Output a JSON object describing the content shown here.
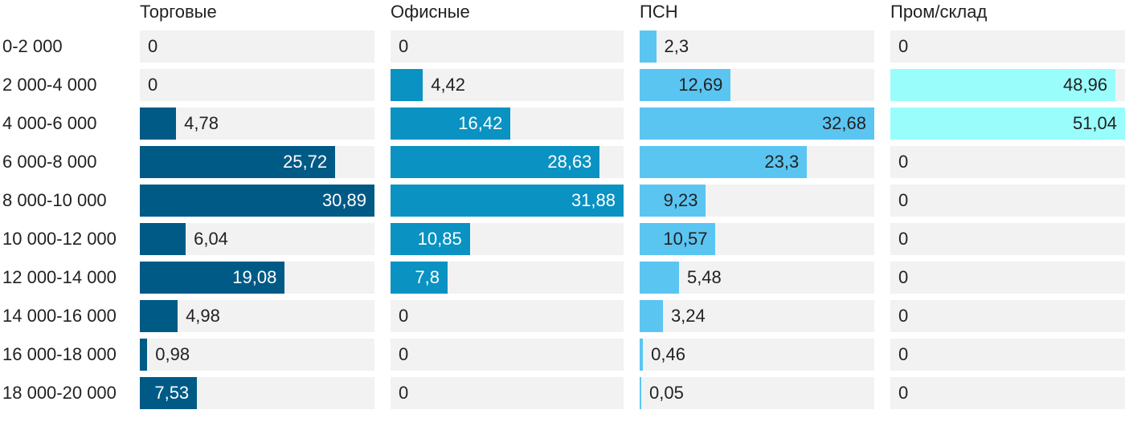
{
  "chart_data": {
    "type": "bar",
    "orientation": "horizontal",
    "layout": "small-multiples",
    "categories": [
      "0-2 000",
      "2 000-4 000",
      "4 000-6 000",
      "6 000-8 000",
      "8 000-10 000",
      "10 000-12 000",
      "12 000-14 000",
      "14 000-16 000",
      "16 000-18 000",
      "18 000-20 000"
    ],
    "series": [
      {
        "name": "Торговые",
        "color": "#005a86",
        "label_color_inside": "#ffffff",
        "max": 30.89,
        "values": [
          0,
          0,
          4.78,
          25.72,
          30.89,
          6.04,
          19.08,
          4.98,
          0.98,
          7.53
        ],
        "labels": [
          "0",
          "0",
          "4,78",
          "25,72",
          "30,89",
          "6,04",
          "19,08",
          "4,98",
          "0,98",
          "7,53"
        ]
      },
      {
        "name": "Офисные",
        "color": "#0992c2",
        "label_color_inside": "#ffffff",
        "max": 31.88,
        "values": [
          0,
          4.42,
          16.42,
          28.63,
          31.88,
          10.85,
          7.8,
          0,
          0,
          0
        ],
        "labels": [
          "0",
          "4,42",
          "16,42",
          "28,63",
          "31,88",
          "10,85",
          "7,8",
          "0",
          "0",
          "0"
        ]
      },
      {
        "name": "ПСН",
        "color": "#5bc5f2",
        "label_color_inside": "#222222",
        "max": 32.68,
        "values": [
          2.3,
          12.69,
          32.68,
          23.3,
          9.23,
          10.57,
          5.48,
          3.24,
          0.46,
          0.05
        ],
        "labels": [
          "2,3",
          "12,69",
          "32,68",
          "23,3",
          "9,23",
          "10,57",
          "5,48",
          "3,24",
          "0,46",
          "0,05"
        ]
      },
      {
        "name": "Пром/склад",
        "color": "#99fdfc",
        "label_color_inside": "#222222",
        "max": 51.04,
        "values": [
          0,
          48.96,
          51.04,
          0,
          0,
          0,
          0,
          0,
          0,
          0
        ],
        "labels": [
          "0",
          "48,96",
          "51,04",
          "0",
          "0",
          "0",
          "0",
          "0",
          "0",
          "0"
        ]
      }
    ],
    "colors": {
      "track": "#f2f2f2",
      "text": "#222222"
    },
    "grid": false,
    "legend": "none"
  }
}
